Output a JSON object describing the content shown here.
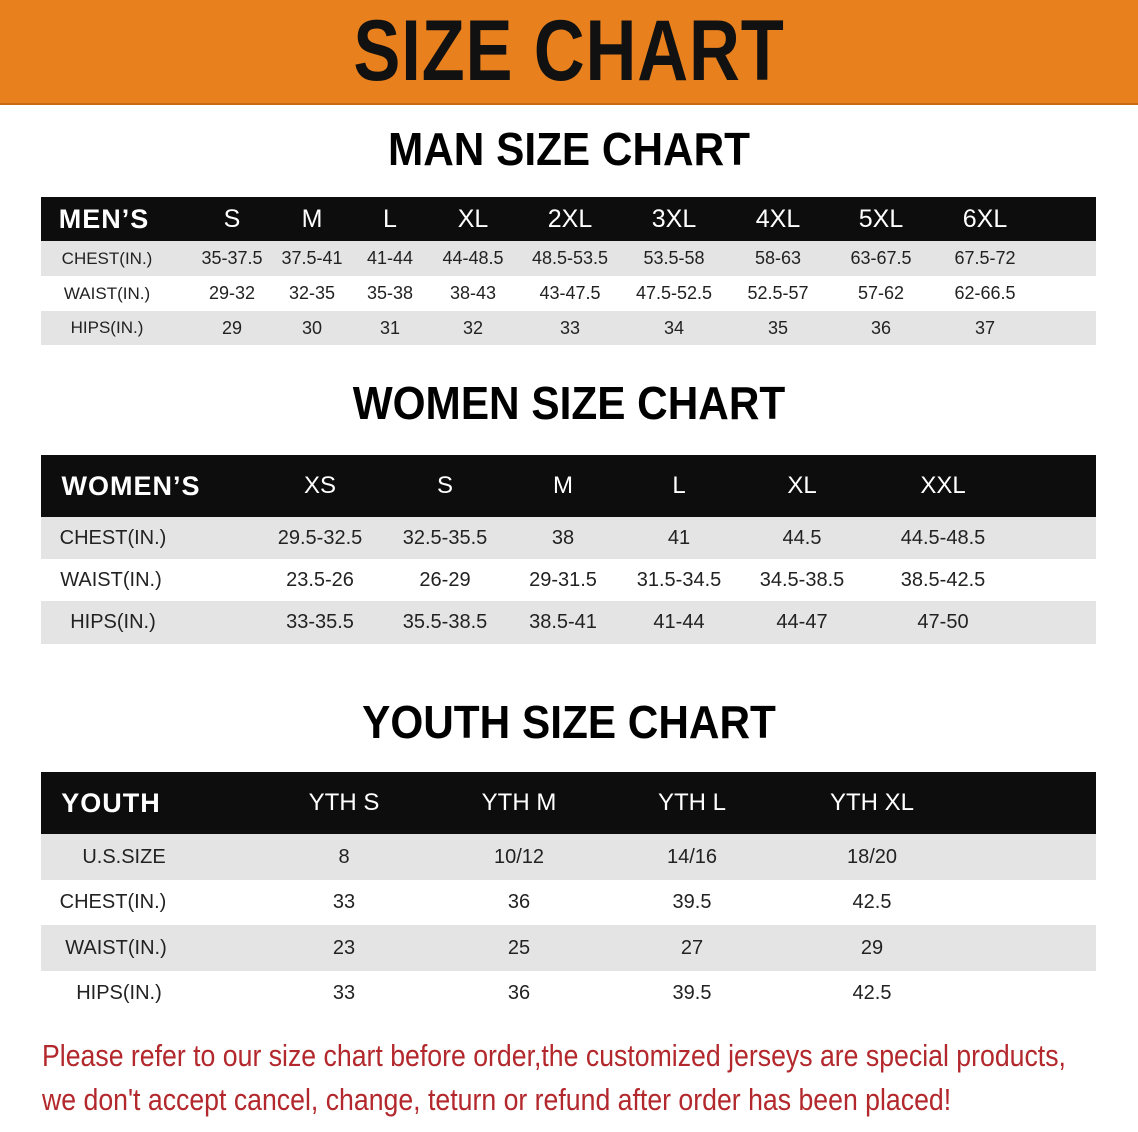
{
  "banner": {
    "title": "SIZE CHART",
    "color": "#E8801E"
  },
  "men": {
    "title": "MAN SIZE CHART",
    "header": [
      "MEN’S",
      "S",
      "M",
      "L",
      "XL",
      "2XL",
      "3XL",
      "4XL",
      "5XL",
      "6XL"
    ],
    "rows": [
      [
        "CHEST(IN.)",
        "35-37.5",
        "37.5-41",
        "41-44",
        "44-48.5",
        "48.5-53.5",
        "53.5-58",
        "58-63",
        "63-67.5",
        "67.5-72"
      ],
      [
        "WAIST(IN.)",
        "29-32",
        "32-35",
        "35-38",
        "38-43",
        "43-47.5",
        "47.5-52.5",
        "52.5-57",
        "57-62",
        "62-66.5"
      ],
      [
        "HIPS(IN.)",
        "29",
        "30",
        "31",
        "32",
        "33",
        "34",
        "35",
        "36",
        "37"
      ]
    ]
  },
  "women": {
    "title": "WOMEN SIZE CHART",
    "header": [
      "WOMEN’S",
      "XS",
      "S",
      "M",
      "L",
      "XL",
      "XXL"
    ],
    "rows": [
      [
        "CHEST(IN.)",
        "29.5-32.5",
        "32.5-35.5",
        "38",
        "41",
        "44.5",
        "44.5-48.5"
      ],
      [
        "WAIST(IN.)",
        "23.5-26",
        "26-29",
        "29-31.5",
        "31.5-34.5",
        "34.5-38.5",
        "38.5-42.5"
      ],
      [
        "HIPS(IN.)",
        "33-35.5",
        "35.5-38.5",
        "38.5-41",
        "41-44",
        "44-47",
        "47-50"
      ]
    ]
  },
  "youth": {
    "title": "YOUTH SIZE CHART",
    "header": [
      "YOUTH",
      "YTH S",
      "YTH M",
      "YTH L",
      "YTH XL"
    ],
    "rows": [
      [
        "U.S.SIZE",
        "8",
        "10/12",
        "14/16",
        "18/20"
      ],
      [
        "CHEST(IN.)",
        "33",
        "36",
        "39.5",
        "42.5"
      ],
      [
        "WAIST(IN.)",
        "23",
        "25",
        "27",
        "29"
      ],
      [
        "HIPS(IN.)",
        "33",
        "36",
        "39.5",
        "42.5"
      ]
    ]
  },
  "notice": {
    "line1": "Please refer to our size chart before order,the customized jerseys are special products,",
    "line2": "we don't accept cancel, change, teturn or refund after order has been placed!",
    "color": "#b3282c"
  }
}
